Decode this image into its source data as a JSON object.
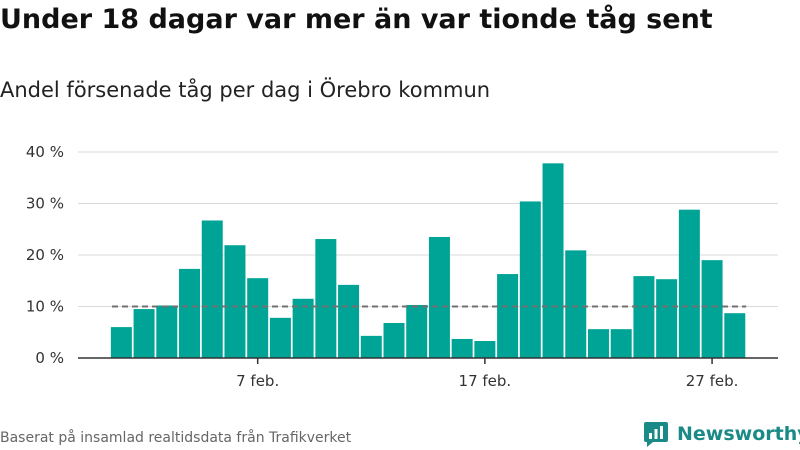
{
  "title": "Under 18 dagar var mer än var tionde tåg sent",
  "subtitle": "Andel försenade tåg per dag i Örebro kommun",
  "source": "Baserat på insamlad realtidsdata från Trafikverket",
  "logo": {
    "text": "Newsworthy",
    "icon": "bar-chart-logo-icon"
  },
  "colors": {
    "bar": "#00a497",
    "reference_line": "#707070",
    "grid": "#d9d9d9",
    "logo": "#1a8a87"
  },
  "chart_data": {
    "type": "bar",
    "x": [
      "1 feb.",
      "2 feb.",
      "3 feb.",
      "4 feb.",
      "5 feb.",
      "6 feb.",
      "7 feb.",
      "8 feb.",
      "9 feb.",
      "10 feb.",
      "11 feb.",
      "12 feb.",
      "13 feb.",
      "14 feb.",
      "15 feb.",
      "16 feb.",
      "17 feb.",
      "18 feb.",
      "19 feb.",
      "20 feb.",
      "21 feb.",
      "22 feb.",
      "23 feb.",
      "24 feb.",
      "25 feb.",
      "26 feb.",
      "27 feb.",
      "28 feb."
    ],
    "values": [
      6,
      9.5,
      10.2,
      17.3,
      26.7,
      21.9,
      15.5,
      7.8,
      11.5,
      23.1,
      14.2,
      4.3,
      6.8,
      10.3,
      23.5,
      3.7,
      3.3,
      16.3,
      30.4,
      37.8,
      20.9,
      5.6,
      5.6,
      15.9,
      15.3,
      28.8,
      19,
      8.7
    ],
    "x_ticks": [
      "7 feb.",
      "17 feb.",
      "27 feb."
    ],
    "y_ticks": [
      0,
      10,
      20,
      30,
      40
    ],
    "y_tick_labels": [
      "0 %",
      "10 %",
      "20 %",
      "30 %",
      "40 %"
    ],
    "ylim": [
      0,
      40
    ],
    "reference_line": {
      "value": 10,
      "style": "dashed"
    },
    "grid": true,
    "legend": "none"
  }
}
